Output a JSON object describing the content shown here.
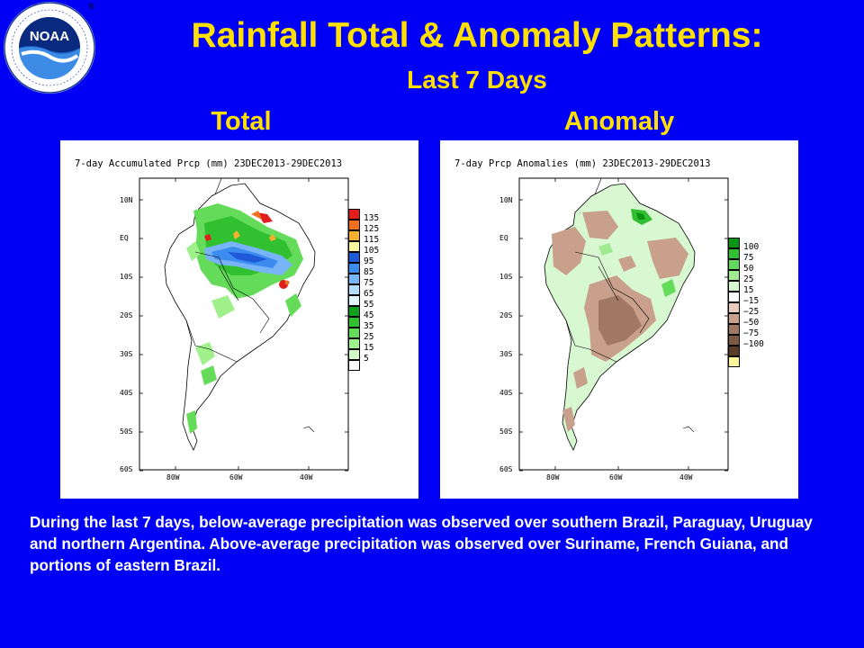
{
  "header": {
    "title": "Rainfall Total & Anomaly Patterns:",
    "subtitle": "Last 7 Days"
  },
  "logo": {
    "center_text": "NOAA",
    "ring_text": "NATIONAL OCEANIC AND ATMOSPHERIC ADMINISTRATION · U.S. DEPARTMENT OF COMMERCE",
    "registered_mark": "®"
  },
  "panels": {
    "total": {
      "label": "Total",
      "map_title": "7-day Accumulated Prcp (mm) 23DEC2013-29DEC2013",
      "lat_ticks": [
        "10N",
        "EQ",
        "10S",
        "20S",
        "30S",
        "40S",
        "50S",
        "60S"
      ],
      "lon_ticks": [
        "80W",
        "60W",
        "40W"
      ],
      "legend": [
        {
          "value": "135",
          "color": "#E01E1E"
        },
        {
          "value": "125",
          "color": "#F07020"
        },
        {
          "value": "115",
          "color": "#F8B030"
        },
        {
          "value": "105",
          "color": "#FFF5A0"
        },
        {
          "value": "95",
          "color": "#1E5AD8"
        },
        {
          "value": "85",
          "color": "#3C8CF0"
        },
        {
          "value": "75",
          "color": "#78B4FA"
        },
        {
          "value": "65",
          "color": "#B4DCFF"
        },
        {
          "value": "55",
          "color": "#E1F5FF"
        },
        {
          "value": "45",
          "color": "#0FA01E"
        },
        {
          "value": "35",
          "color": "#30C030"
        },
        {
          "value": "25",
          "color": "#64DC5A"
        },
        {
          "value": "15",
          "color": "#A0F08C"
        },
        {
          "value": "5",
          "color": "#D2FAC8"
        },
        {
          "value": "",
          "color": "#FFFFFF"
        }
      ]
    },
    "anomaly": {
      "label": "Anomaly",
      "map_title": "7-day Prcp Anomalies (mm) 23DEC2013-29DEC2013",
      "lat_ticks": [
        "10N",
        "EQ",
        "10S",
        "20S",
        "30S",
        "40S",
        "50S",
        "60S"
      ],
      "lon_ticks": [
        "80W",
        "60W",
        "40W"
      ],
      "legend": [
        {
          "value": "100",
          "color": "#0A9614"
        },
        {
          "value": "75",
          "color": "#32BE32"
        },
        {
          "value": "50",
          "color": "#64D75F"
        },
        {
          "value": "25",
          "color": "#A0EB91"
        },
        {
          "value": "15",
          "color": "#D7F8D0"
        },
        {
          "value": "−15",
          "color": "#FFFFFF"
        },
        {
          "value": "−25",
          "color": "#E8CDBE"
        },
        {
          "value": "−50",
          "color": "#C8A08C"
        },
        {
          "value": "−75",
          "color": "#A07864"
        },
        {
          "value": "−100",
          "color": "#7D5A46"
        },
        {
          "value": "",
          "color": "#5A3C28"
        },
        {
          "value": "",
          "color": "#FFF59B"
        }
      ]
    }
  },
  "caption": "During the last 7 days, below-average precipitation was observed over southern Brazil, Paraguay, Uruguay and northern Argentina. Above-average precipitation was observed over Suriname, French Guiana, and portions of eastern Brazil."
}
